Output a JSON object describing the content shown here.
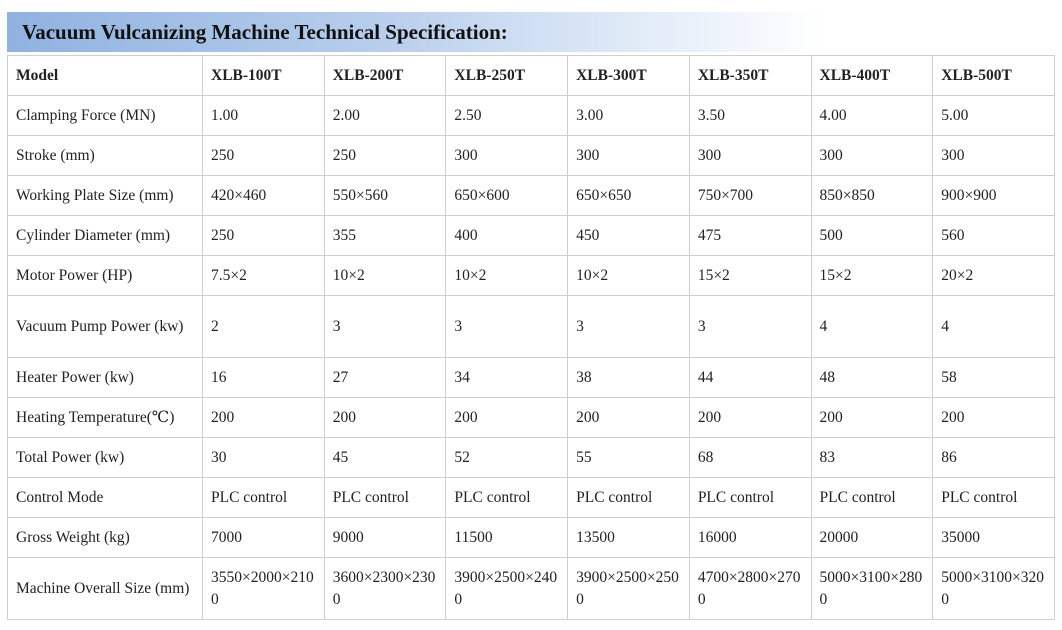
{
  "header": {
    "title": "Vacuum Vulcanizing Machine Technical Specification:"
  },
  "table": {
    "columns": [
      "Model",
      "XLB-100T",
      "XLB-200T",
      "XLB-250T",
      "XLB-300T",
      "XLB-350T",
      "XLB-400T",
      "XLB-500T"
    ],
    "rows": [
      [
        "Clamping Force (MN)",
        "1.00",
        "2.00",
        "2.50",
        "3.00",
        "3.50",
        "4.00",
        "5.00"
      ],
      [
        "Stroke (mm)",
        "250",
        "250",
        "300",
        "300",
        "300",
        "300",
        "300"
      ],
      [
        "Working Plate Size (mm)",
        "420×460",
        "550×560",
        "650×600",
        "650×650",
        "750×700",
        "850×850",
        "900×900"
      ],
      [
        "Cylinder Diameter (mm)",
        "250",
        "355",
        "400",
        "450",
        "475",
        "500",
        "560"
      ],
      [
        "Motor Power (HP)",
        "7.5×2",
        "10×2",
        "10×2",
        "10×2",
        "15×2",
        "15×2",
        "20×2"
      ],
      [
        "Vacuum Pump Power (kw)",
        "2",
        "3",
        "3",
        "3",
        "3",
        "4",
        "4"
      ],
      [
        "Heater Power (kw)",
        "16",
        "27",
        "34",
        "38",
        "44",
        "48",
        "58"
      ],
      [
        "Heating Temperature(℃)",
        "200",
        "200",
        "200",
        "200",
        "200",
        "200",
        "200"
      ],
      [
        "Total Power (kw)",
        "30",
        "45",
        "52",
        "55",
        "68",
        "83",
        "86"
      ],
      [
        "Control Mode",
        "PLC control",
        "PLC control",
        "PLC control",
        "PLC control",
        "PLC control",
        "PLC control",
        "PLC control"
      ],
      [
        "Gross Weight (kg)",
        "7000",
        "9000",
        "11500",
        "13500",
        "16000",
        "20000",
        "35000"
      ],
      [
        "Machine Overall Size (mm)",
        "3550×2000×2100",
        "3600×2300×2300",
        "3900×2500×2400",
        "3900×2500×2500",
        "4700×2800×2700",
        "5000×3100×2800",
        "5000×3100×3200"
      ]
    ]
  }
}
